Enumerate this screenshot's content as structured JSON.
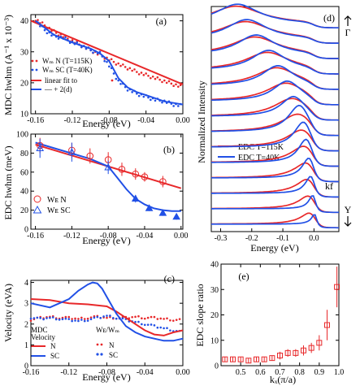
{
  "colors": {
    "red": "#e8282a",
    "blue": "#2150e6",
    "black": "#000000"
  },
  "chart_data": [
    {
      "id": "a",
      "type": "scatter",
      "panel_label": "(a)",
      "xlabel": "Energy (eV)",
      "ylabel": "MDC hwhm (A⁻¹ x 10⁻³)",
      "xlim": [
        -0.165,
        0.0
      ],
      "ylim": [
        10,
        42
      ],
      "xticks": [
        "-0.16",
        "-0.12",
        "-0.08",
        "-0.04",
        "0.00"
      ],
      "yticks": [
        "10",
        "20",
        "30",
        "40"
      ],
      "legend": {
        "n": "Wₘ N (T=115K)",
        "sc": "Wₘ SC (T=40K)",
        "fit": "linear fit to",
        "fit2": "— + 2(d)"
      },
      "series": [
        {
          "name": "Wₘ N (T=115K)",
          "style": "points",
          "color": "#e8282a",
          "x": [
            -0.16,
            -0.15,
            -0.14,
            -0.13,
            -0.12,
            -0.11,
            -0.1,
            -0.09,
            -0.08,
            -0.07,
            -0.06,
            -0.05,
            -0.04,
            -0.03,
            -0.02,
            -0.01,
            0.0
          ],
          "y": [
            40.5,
            38.5,
            36.5,
            35.0,
            33.5,
            32.0,
            30.5,
            29.0,
            27.5,
            26.0,
            24.8,
            23.5,
            22.5,
            21.5,
            20.5,
            19.5,
            18.5
          ]
        },
        {
          "name": "Wₘ SC (T=40K)",
          "style": "points",
          "color": "#2150e6",
          "x": [
            -0.16,
            -0.15,
            -0.14,
            -0.13,
            -0.12,
            -0.11,
            -0.1,
            -0.09,
            -0.08,
            -0.07,
            -0.06,
            -0.05,
            -0.04,
            -0.03,
            -0.02,
            -0.01,
            0.0
          ],
          "y": [
            40.0,
            37.0,
            35.0,
            34.5,
            33.0,
            32.0,
            30.5,
            29.5,
            25.5,
            20.5,
            18.0,
            16.5,
            15.5,
            14.5,
            14.0,
            13.0,
            12.5
          ]
        },
        {
          "name": "linear fit to",
          "style": "line",
          "color": "#e8282a",
          "x": [
            -0.165,
            0.0
          ],
          "y": [
            40.0,
            19.5
          ]
        },
        {
          "name": "+ 2(d)",
          "style": "line",
          "color": "#2150e6",
          "x": [
            -0.16,
            -0.14,
            -0.12,
            -0.1,
            -0.09,
            -0.08,
            -0.07,
            -0.06,
            -0.05,
            -0.04,
            -0.03,
            -0.02,
            -0.01,
            0.0
          ],
          "y": [
            40.0,
            35.5,
            33.0,
            31.0,
            29.5,
            27.0,
            21.5,
            18.5,
            17.0,
            16.0,
            15.0,
            14.0,
            13.5,
            13.0
          ]
        }
      ]
    },
    {
      "id": "b",
      "type": "scatter",
      "panel_label": "(b)",
      "xlabel": "Energy (eV)",
      "ylabel": "EDC hwhm (meV)",
      "xlim": [
        -0.165,
        0.002
      ],
      "ylim": [
        0,
        100
      ],
      "xticks": [
        "-0.16",
        "-0.12",
        "-0.08",
        "-0.04",
        "0.00"
      ],
      "yticks": [
        "0",
        "20",
        "40",
        "60",
        "80",
        "100"
      ],
      "legend": {
        "n": "Wᴇ N",
        "sc": "Wᴇ SC"
      },
      "series": [
        {
          "name": "Wᴇ N",
          "style": "circles",
          "color": "#e8282a",
          "x": [
            -0.155,
            -0.12,
            -0.1,
            -0.08,
            -0.065,
            -0.05,
            -0.04,
            -0.02
          ],
          "y": [
            88,
            83,
            77,
            73,
            63,
            58,
            55,
            50
          ],
          "err": [
            8,
            8,
            8,
            8,
            7,
            6,
            5,
            6
          ]
        },
        {
          "name": "Wᴇ SC",
          "style": "triangles",
          "color": "#2150e6",
          "x": [
            -0.155,
            -0.12,
            -0.08,
            -0.05,
            -0.035,
            -0.02,
            -0.005
          ],
          "y": [
            85,
            81,
            65,
            32,
            22,
            17,
            13
          ],
          "err": [
            10,
            10,
            7,
            4,
            3,
            3,
            3
          ]
        },
        {
          "name": "N fit",
          "style": "line",
          "color": "#e8282a",
          "x": [
            -0.16,
            0.0
          ],
          "y": [
            89,
            43
          ]
        },
        {
          "name": "SC fit",
          "style": "line",
          "color": "#2150e6",
          "x": [
            -0.16,
            -0.1,
            -0.08,
            -0.07,
            -0.06,
            -0.05,
            -0.04,
            -0.03,
            -0.02,
            -0.01,
            0.0
          ],
          "y": [
            91,
            74,
            66,
            54,
            42,
            32,
            26,
            22,
            20,
            19,
            19
          ]
        }
      ]
    },
    {
      "id": "c",
      "type": "line",
      "panel_label": "(c)",
      "xlabel": "Energy (eV)",
      "ylabel": "Velocity (eVA)",
      "xlim": [
        -0.16,
        0.0
      ],
      "ylim": [
        0,
        4.1
      ],
      "xticks": [
        "-0.16",
        "-0.12",
        "-0.08",
        "-0.04",
        "0.00"
      ],
      "yticks": [
        "0",
        "1",
        "2",
        "3",
        "4"
      ],
      "legend": {
        "mdc_title": "MDC",
        "mdc_title2": "Velocity",
        "ratio_title": "Wᴇ/Wₘ",
        "n": "N",
        "sc": "SC",
        "n2": "N",
        "sc2": "SC"
      },
      "series": [
        {
          "name": "N",
          "style": "line",
          "color": "#e8282a",
          "x": [
            -0.16,
            -0.14,
            -0.12,
            -0.1,
            -0.09,
            -0.08,
            -0.07,
            -0.06,
            -0.05,
            -0.04,
            -0.03,
            -0.02,
            -0.01,
            0.0
          ],
          "y": [
            3.2,
            3.15,
            3.0,
            2.95,
            2.9,
            2.85,
            2.6,
            2.3,
            2.0,
            1.7,
            1.5,
            1.45,
            1.6,
            1.7
          ]
        },
        {
          "name": "SC",
          "style": "line",
          "color": "#2150e6",
          "x": [
            -0.16,
            -0.14,
            -0.12,
            -0.11,
            -0.1,
            -0.095,
            -0.09,
            -0.085,
            -0.08,
            -0.07,
            -0.06,
            -0.05,
            -0.04,
            -0.03,
            -0.02,
            -0.01,
            0.0
          ],
          "y": [
            3.0,
            2.8,
            3.2,
            3.6,
            3.9,
            4.0,
            3.95,
            3.7,
            3.3,
            2.5,
            1.9,
            1.6,
            1.4,
            1.3,
            1.2,
            1.2,
            1.3
          ]
        },
        {
          "name": "N ratio",
          "style": "points",
          "color": "#e8282a",
          "x": [
            -0.16,
            -0.15,
            -0.14,
            -0.13,
            -0.12,
            -0.11,
            -0.1,
            -0.09,
            -0.08,
            -0.07,
            -0.06,
            -0.05,
            -0.04,
            -0.03,
            -0.02,
            -0.01,
            0.0
          ],
          "y": [
            2.2,
            2.3,
            2.35,
            2.3,
            2.3,
            2.25,
            2.3,
            2.35,
            2.3,
            2.3,
            2.3,
            2.35,
            2.3,
            2.3,
            2.25,
            2.2,
            2.2
          ]
        },
        {
          "name": "SC ratio",
          "style": "points",
          "color": "#2150e6",
          "x": [
            -0.16,
            -0.15,
            -0.14,
            -0.13,
            -0.12,
            -0.11,
            -0.1,
            -0.09,
            -0.08,
            -0.07,
            -0.06,
            -0.05,
            -0.04,
            -0.03,
            -0.02,
            -0.01,
            0.0
          ],
          "y": [
            2.3,
            2.25,
            2.3,
            2.25,
            2.2,
            2.15,
            2.2,
            2.3,
            2.4,
            2.3,
            2.2,
            2.1,
            2.0,
            1.9,
            1.8,
            1.7,
            1.6
          ]
        }
      ]
    },
    {
      "id": "d",
      "type": "line",
      "panel_label": "(d)",
      "xlabel": "Energy (eV)",
      "ylabel": "Normalized Intensity",
      "xlim": [
        -0.33,
        0.08
      ],
      "ylim": [
        0,
        15
      ],
      "xticks": [
        "-0.3",
        "-0.2",
        "-0.1",
        "0.0"
      ],
      "xtick_values": [
        -0.3,
        -0.2,
        -0.1,
        0.0
      ],
      "legend": {
        "n": "EDC T=115K",
        "sc": "EDC T=40K"
      },
      "annotations": {
        "gamma": "Γ",
        "y": "Y",
        "kf": "kf"
      },
      "n_curves": 14,
      "peak_positions": [
        -0.25,
        -0.22,
        -0.19,
        -0.15,
        -0.12,
        -0.09,
        -0.07,
        -0.05,
        -0.035,
        -0.025,
        -0.015,
        -0.01,
        -0.005,
        0.0
      ],
      "series": [
        {
          "name": "EDC T=115K",
          "style": "lines",
          "color": "#e8282a"
        },
        {
          "name": "EDC T=40K",
          "style": "lines",
          "color": "#2150e6"
        }
      ]
    },
    {
      "id": "e",
      "type": "scatter",
      "panel_label": "(e)",
      "xlabel": "kₓ(π/a)",
      "ylabel": "EDC slope ratio",
      "xlim": [
        0.4,
        1.0
      ],
      "ylim": [
        0,
        40
      ],
      "xticks": [
        "0.5",
        "0.6",
        "0.7",
        "0.8",
        "0.9",
        "1.0"
      ],
      "yticks": [
        "0",
        "10",
        "20",
        "30",
        "40"
      ],
      "series": [
        {
          "name": "ratio",
          "style": "squares",
          "color": "#e8282a",
          "x": [
            0.42,
            0.46,
            0.5,
            0.54,
            0.58,
            0.62,
            0.66,
            0.7,
            0.74,
            0.78,
            0.82,
            0.86,
            0.9,
            0.94,
            0.99
          ],
          "y": [
            2.5,
            2.5,
            2.5,
            2.0,
            2.5,
            2.5,
            3.0,
            4.0,
            5.0,
            5.0,
            6.0,
            7.0,
            9.0,
            16.0,
            31.0
          ],
          "err": [
            1,
            1,
            1,
            1,
            1,
            1,
            1,
            1.5,
            1.5,
            1.5,
            2,
            2,
            3,
            6,
            8
          ]
        }
      ]
    }
  ]
}
